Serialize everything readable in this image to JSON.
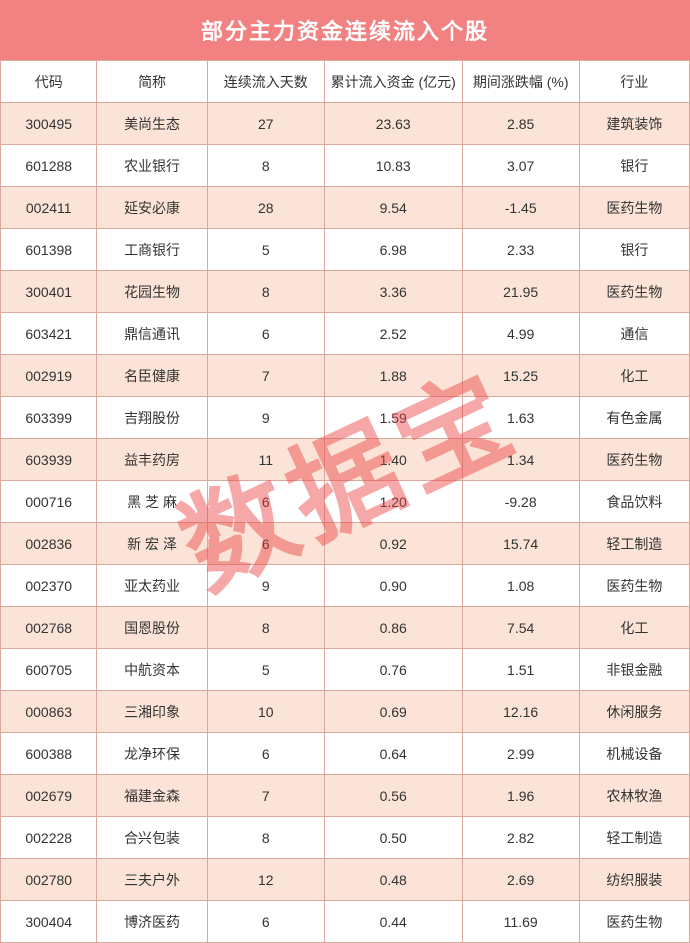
{
  "title": "部分主力资金连续流入个股",
  "watermark": "数据宝",
  "columns": [
    "代码",
    "简称",
    "连续流入天数",
    "累计流入资金 (亿元)",
    "期间涨跌幅 (%)",
    "行业"
  ],
  "col_widths": [
    "14%",
    "16%",
    "17%",
    "20%",
    "17%",
    "16%"
  ],
  "rows": [
    [
      "300495",
      "美尚生态",
      "27",
      "23.63",
      "2.85",
      "建筑装饰"
    ],
    [
      "601288",
      "农业银行",
      "8",
      "10.83",
      "3.07",
      "银行"
    ],
    [
      "002411",
      "延安必康",
      "28",
      "9.54",
      "-1.45",
      "医药生物"
    ],
    [
      "601398",
      "工商银行",
      "5",
      "6.98",
      "2.33",
      "银行"
    ],
    [
      "300401",
      "花园生物",
      "8",
      "3.36",
      "21.95",
      "医药生物"
    ],
    [
      "603421",
      "鼎信通讯",
      "6",
      "2.52",
      "4.99",
      "通信"
    ],
    [
      "002919",
      "名臣健康",
      "7",
      "1.88",
      "15.25",
      "化工"
    ],
    [
      "603399",
      "吉翔股份",
      "9",
      "1.59",
      "1.63",
      "有色金属"
    ],
    [
      "603939",
      "益丰药房",
      "11",
      "1.40",
      "1.34",
      "医药生物"
    ],
    [
      "000716",
      "黑 芝 麻",
      "6",
      "1.20",
      "-9.28",
      "食品饮料"
    ],
    [
      "002836",
      "新 宏 泽",
      "6",
      "0.92",
      "15.74",
      "轻工制造"
    ],
    [
      "002370",
      "亚太药业",
      "9",
      "0.90",
      "1.08",
      "医药生物"
    ],
    [
      "002768",
      "国恩股份",
      "8",
      "0.86",
      "7.54",
      "化工"
    ],
    [
      "600705",
      "中航资本",
      "5",
      "0.76",
      "1.51",
      "非银金融"
    ],
    [
      "000863",
      "三湘印象",
      "10",
      "0.69",
      "12.16",
      "休闲服务"
    ],
    [
      "600388",
      "龙净环保",
      "6",
      "0.64",
      "2.99",
      "机械设备"
    ],
    [
      "002679",
      "福建金森",
      "7",
      "0.56",
      "1.96",
      "农林牧渔"
    ],
    [
      "002228",
      "合兴包装",
      "8",
      "0.50",
      "2.82",
      "轻工制造"
    ],
    [
      "002780",
      "三夫户外",
      "12",
      "0.48",
      "2.69",
      "纺织服装"
    ],
    [
      "300404",
      "博济医药",
      "6",
      "0.44",
      "11.69",
      "医药生物"
    ]
  ],
  "colors": {
    "title_bg": "#f28181",
    "title_fg": "#ffffff",
    "odd_row_bg": "#fbe3d7",
    "even_row_bg": "#ffffff",
    "border": "#d9a9a0",
    "watermark": "rgba(236,62,62,0.45)",
    "text": "#333333"
  }
}
